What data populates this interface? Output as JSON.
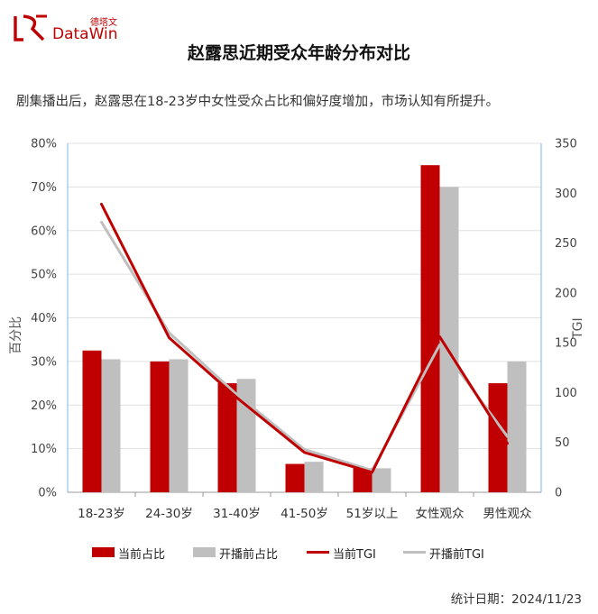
{
  "brand": {
    "logo_cn": "德塔文",
    "logo_en": "DataWin"
  },
  "title": "赵露思近期受众年龄分布对比",
  "subtitle": "剧集播出后，赵露思在18-23岁中女性受众占比和偏好度增加，市场认知有所提升。",
  "footer": "统计日期：2024/11/23",
  "colors": {
    "current": "#c00000",
    "before": "#bfbfbf"
  },
  "chart_data": {
    "type": "bar",
    "categories": [
      "18-23岁",
      "24-30岁",
      "31-40岁",
      "41-50岁",
      "51岁以上",
      "女性观众",
      "男性观众"
    ],
    "ylabel_left": "百分比",
    "ylabel_right": "TGI",
    "ylim_left": [
      0,
      80
    ],
    "ylim_right": [
      0,
      350
    ],
    "yticks_left": [
      "0%",
      "10%",
      "20%",
      "30%",
      "40%",
      "50%",
      "60%",
      "70%",
      "80%"
    ],
    "yticks_right": [
      "0",
      "50",
      "100",
      "150",
      "200",
      "250",
      "300",
      "350"
    ],
    "series": [
      {
        "name": "当前占比",
        "kind": "bar",
        "axis": "left",
        "values": [
          32.5,
          30,
          25,
          6.5,
          5.5,
          75,
          25
        ]
      },
      {
        "name": "开播前占比",
        "kind": "bar",
        "axis": "left",
        "values": [
          30.5,
          30.5,
          26,
          7,
          5.5,
          70,
          30
        ]
      },
      {
        "name": "当前TGI",
        "kind": "line",
        "axis": "right",
        "values": [
          289,
          155,
          95,
          40,
          20,
          156,
          49
        ]
      },
      {
        "name": "开播前TGI",
        "kind": "line",
        "axis": "right",
        "values": [
          271,
          160,
          98,
          43,
          22,
          148,
          56
        ]
      }
    ]
  }
}
